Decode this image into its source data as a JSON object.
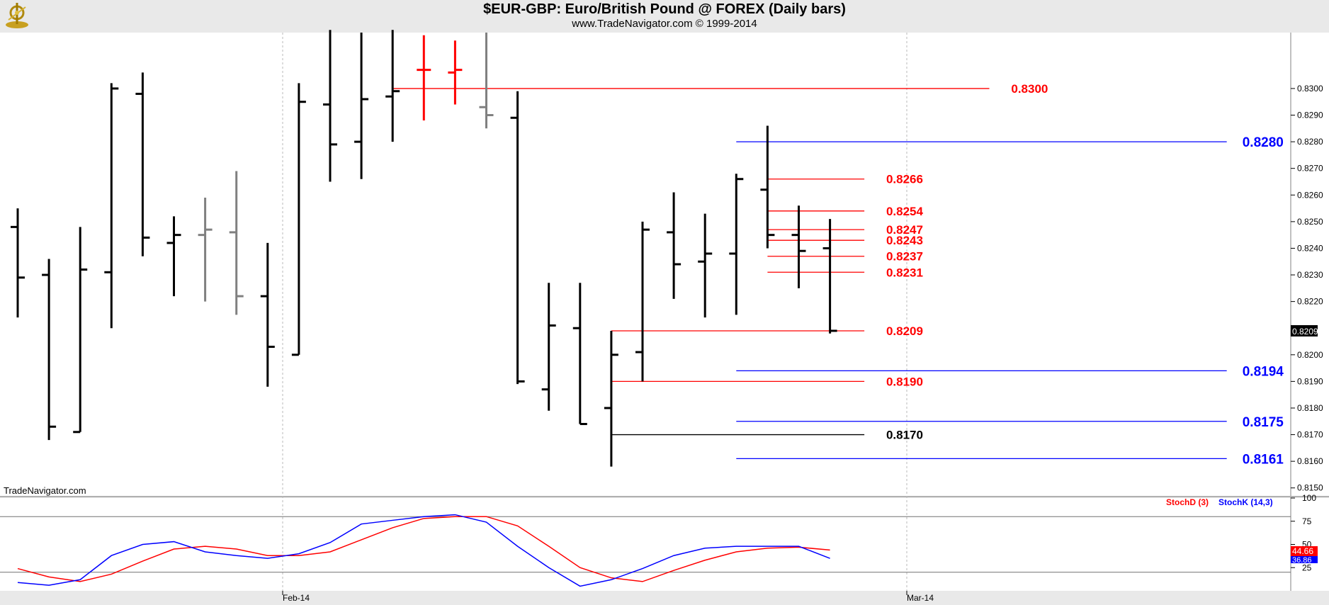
{
  "header": {
    "title": "$EUR-GBP:  Euro/British Pound @ FOREX  (Daily bars)",
    "subtitle": "www.TradeNavigator.com © 1999-2014",
    "watermark": "TradeNavigator.com"
  },
  "chart_data": [
    {
      "type": "ohlc",
      "y_ticks": [
        "0.8300",
        "0.8290",
        "0.8280",
        "0.8270",
        "0.8260",
        "0.8250",
        "0.8240",
        "0.8230",
        "0.8220",
        "0.8200",
        "0.8190",
        "0.8180",
        "0.8170",
        "0.8160",
        "0.8150"
      ],
      "ylim": [
        0.8147,
        0.8321
      ],
      "x_labels": [
        "Feb-14",
        "Mar-14"
      ],
      "last_price": "0.8209",
      "bars": [
        {
          "open": 0.8248,
          "high": 0.8255,
          "low": 0.8214,
          "close": 0.8229,
          "color": "black"
        },
        {
          "open": 0.823,
          "high": 0.8236,
          "low": 0.8168,
          "close": 0.8173,
          "color": "black"
        },
        {
          "open": 0.8171,
          "high": 0.8248,
          "low": 0.8171,
          "close": 0.8232,
          "color": "black"
        },
        {
          "open": 0.8231,
          "high": 0.8302,
          "low": 0.821,
          "close": 0.83,
          "color": "black"
        },
        {
          "open": 0.8298,
          "high": 0.8306,
          "low": 0.8237,
          "close": 0.8244,
          "color": "black"
        },
        {
          "open": 0.8242,
          "high": 0.8252,
          "low": 0.8222,
          "close": 0.8245,
          "color": "black"
        },
        {
          "open": 0.8245,
          "high": 0.8259,
          "low": 0.822,
          "close": 0.8247,
          "color": "gray"
        },
        {
          "open": 0.8246,
          "high": 0.8269,
          "low": 0.8215,
          "close": 0.8222,
          "color": "gray"
        },
        {
          "open": 0.8222,
          "high": 0.8242,
          "low": 0.8188,
          "close": 0.8203,
          "color": "black"
        },
        {
          "open": 0.82,
          "high": 0.8302,
          "low": 0.82,
          "close": 0.8295,
          "color": "black"
        },
        {
          "open": 0.8294,
          "high": 0.8322,
          "low": 0.8265,
          "close": 0.8279,
          "color": "black"
        },
        {
          "open": 0.828,
          "high": 0.8321,
          "low": 0.8266,
          "close": 0.8296,
          "color": "black"
        },
        {
          "open": 0.8297,
          "high": 0.8322,
          "low": 0.828,
          "close": 0.8299,
          "color": "black"
        },
        {
          "open": 0.8307,
          "high": 0.832,
          "low": 0.8288,
          "close": 0.8307,
          "color": "red"
        },
        {
          "open": 0.8306,
          "high": 0.8318,
          "low": 0.8294,
          "close": 0.8307,
          "color": "red"
        },
        {
          "open": 0.8293,
          "high": 0.8321,
          "low": 0.8285,
          "close": 0.829,
          "color": "gray"
        },
        {
          "open": 0.8289,
          "high": 0.8299,
          "low": 0.8189,
          "close": 0.819,
          "color": "black"
        },
        {
          "open": 0.8187,
          "high": 0.8227,
          "low": 0.8179,
          "close": 0.8211,
          "color": "black"
        },
        {
          "open": 0.821,
          "high": 0.8227,
          "low": 0.8174,
          "close": 0.8174,
          "color": "black"
        },
        {
          "open": 0.818,
          "high": 0.8209,
          "low": 0.8158,
          "close": 0.82,
          "color": "black"
        },
        {
          "open": 0.8201,
          "high": 0.825,
          "low": 0.819,
          "close": 0.8247,
          "color": "black"
        },
        {
          "open": 0.8246,
          "high": 0.8261,
          "low": 0.8221,
          "close": 0.8234,
          "color": "black"
        },
        {
          "open": 0.8235,
          "high": 0.8253,
          "low": 0.8214,
          "close": 0.8238,
          "color": "black"
        },
        {
          "open": 0.8238,
          "high": 0.8268,
          "low": 0.8215,
          "close": 0.8266,
          "color": "black"
        },
        {
          "open": 0.8262,
          "high": 0.8286,
          "low": 0.824,
          "close": 0.8245,
          "color": "black"
        },
        {
          "open": 0.8245,
          "high": 0.8256,
          "low": 0.8225,
          "close": 0.8239,
          "color": "black"
        },
        {
          "open": 0.824,
          "high": 0.8251,
          "low": 0.8208,
          "close": 0.8209,
          "color": "black"
        }
      ],
      "levels": [
        {
          "label": "0.8300",
          "value": 0.83,
          "color": "#ff0000",
          "from_bar": 12,
          "to_bar": 31.1,
          "label_bar": 31.8
        },
        {
          "label": "0.8280",
          "value": 0.828,
          "color": "#0000ff",
          "from_bar": 23,
          "to_bar": 38.7,
          "label_bar": 39.2
        },
        {
          "label": "0.8266",
          "value": 0.8266,
          "color": "#ff0000",
          "from_bar": 24,
          "to_bar": 27.1,
          "label_bar": 27.8
        },
        {
          "label": "0.8254",
          "value": 0.8254,
          "color": "#ff0000",
          "from_bar": 24,
          "to_bar": 27.1,
          "label_bar": 27.8
        },
        {
          "label": "0.8247",
          "value": 0.8247,
          "color": "#ff0000",
          "from_bar": 24,
          "to_bar": 27.1,
          "label_bar": 27.8
        },
        {
          "label": "0.8243",
          "value": 0.8243,
          "color": "#ff0000",
          "from_bar": 24,
          "to_bar": 27.1,
          "label_bar": 27.8
        },
        {
          "label": "0.8237",
          "value": 0.8237,
          "color": "#ff0000",
          "from_bar": 24,
          "to_bar": 27.1,
          "label_bar": 27.8
        },
        {
          "label": "0.8231",
          "value": 0.8231,
          "color": "#ff0000",
          "from_bar": 24,
          "to_bar": 27.1,
          "label_bar": 27.8
        },
        {
          "label": "0.8209",
          "value": 0.8209,
          "color": "#ff0000",
          "from_bar": 19,
          "to_bar": 27.1,
          "label_bar": 27.8
        },
        {
          "label": "0.8194",
          "value": 0.8194,
          "color": "#0000ff",
          "from_bar": 23,
          "to_bar": 38.7,
          "label_bar": 39.2
        },
        {
          "label": "0.8190",
          "value": 0.819,
          "color": "#ff0000",
          "from_bar": 19,
          "to_bar": 27.1,
          "label_bar": 27.8
        },
        {
          "label": "0.8175",
          "value": 0.8175,
          "color": "#0000ff",
          "from_bar": 23,
          "to_bar": 38.7,
          "label_bar": 39.2
        },
        {
          "label": "0.8170",
          "value": 0.817,
          "color": "#000000",
          "from_bar": 19,
          "to_bar": 27.1,
          "label_bar": 27.8
        },
        {
          "label": "0.8161",
          "value": 0.8161,
          "color": "#0000ff",
          "from_bar": 23,
          "to_bar": 38.7,
          "label_bar": 39.2
        }
      ]
    },
    {
      "type": "line",
      "y_ticks": [
        "100",
        "75",
        "50",
        "25"
      ],
      "ylim": [
        0,
        100
      ],
      "reference_lines": [
        80,
        20
      ],
      "series": [
        {
          "name": "StochD (3)",
          "color": "#ff0000",
          "values": [
            24,
            15,
            10,
            18,
            32,
            45,
            48,
            45,
            38,
            38,
            42,
            55,
            68,
            78,
            80,
            80,
            70,
            48,
            25,
            14,
            10,
            22,
            33,
            42,
            46,
            47,
            44
          ],
          "last": "44.66"
        },
        {
          "name": "StochK (14,3)",
          "color": "#0000ff",
          "values": [
            9,
            6,
            12,
            38,
            50,
            53,
            42,
            38,
            35,
            40,
            52,
            72,
            76,
            80,
            82,
            74,
            48,
            25,
            5,
            12,
            24,
            38,
            46,
            48,
            48,
            48,
            35
          ],
          "last": "36.86"
        }
      ]
    }
  ]
}
